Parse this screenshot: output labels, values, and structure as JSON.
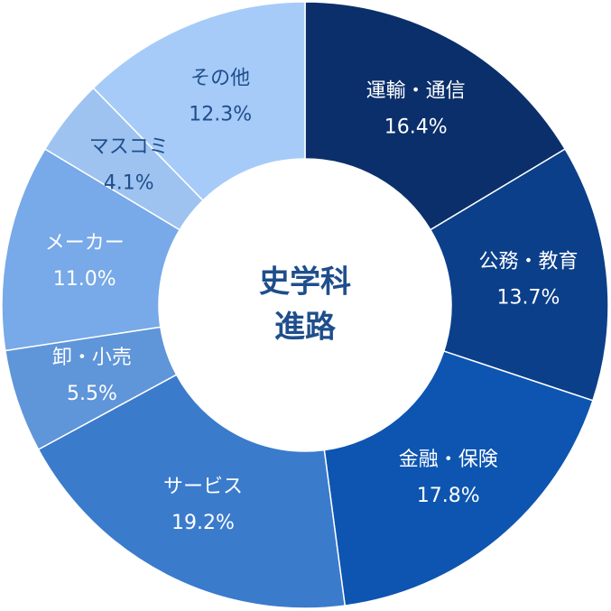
{
  "chart_data": {
    "type": "pie",
    "variant": "donut",
    "center_title": [
      "史学科",
      "進路"
    ],
    "start_angle_deg": 0,
    "direction": "clockwise",
    "slices": [
      {
        "label": "運輸・通信",
        "value": 16.4,
        "value_label": "16.4%",
        "color": "#0a2f6b",
        "text_color": "#ffffff"
      },
      {
        "label": "公務・教育",
        "value": 13.7,
        "value_label": "13.7%",
        "color": "#0b3f8a",
        "text_color": "#ffffff"
      },
      {
        "label": "金融・保険",
        "value": 17.8,
        "value_label": "17.8%",
        "color": "#0d55b0",
        "text_color": "#ffffff"
      },
      {
        "label": "サービス",
        "value": 19.2,
        "value_label": "19.2%",
        "color": "#3a7bcc",
        "text_color": "#ffffff"
      },
      {
        "label": "卸・小売",
        "value": 5.5,
        "value_label": "5.5%",
        "color": "#5f95d9",
        "text_color": "#ffffff"
      },
      {
        "label": "メーカー",
        "value": 11.0,
        "value_label": "11.0%",
        "color": "#78a9e8",
        "text_color": "#ffffff"
      },
      {
        "label": "マスコミ",
        "value": 4.1,
        "value_label": "4.1%",
        "color": "#9ec3f1",
        "text_color": "#1f4e8c"
      },
      {
        "label": "その他",
        "value": 12.3,
        "value_label": "12.3%",
        "color": "#a6cbf8",
        "text_color": "#1f4e8c"
      }
    ]
  }
}
